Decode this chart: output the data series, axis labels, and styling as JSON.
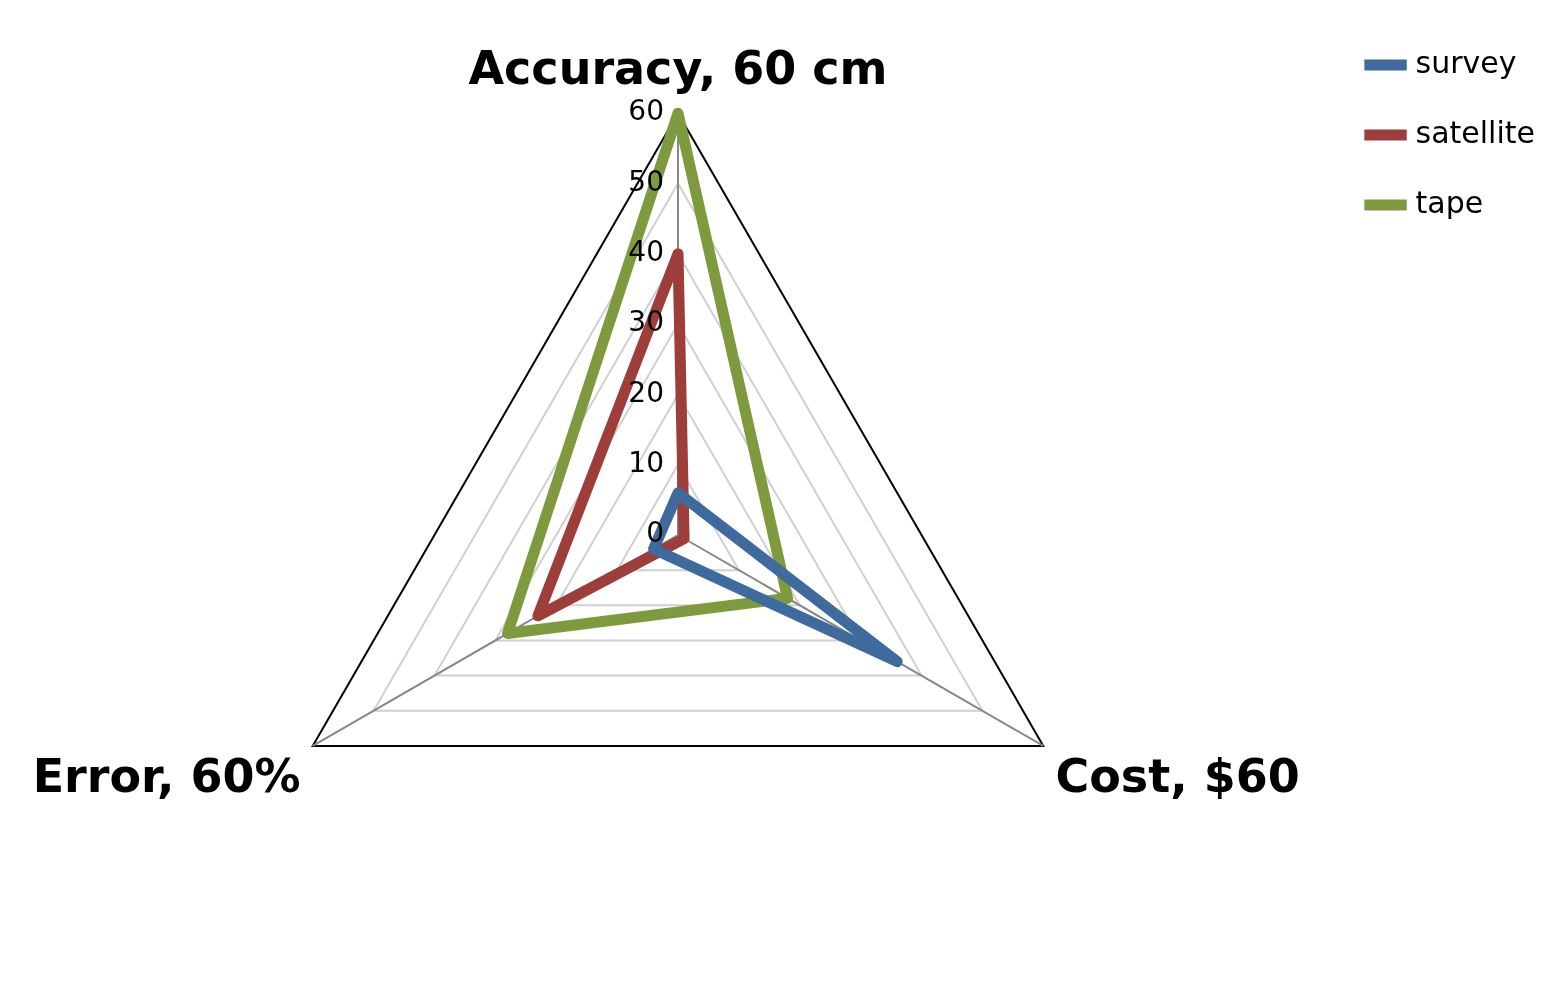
{
  "chart_data": {
    "type": "radar",
    "categories": [
      "Accuracy, 60 cm",
      "Cost, $60",
      "Error, 60%"
    ],
    "series": [
      {
        "name": "survey",
        "color": "#3e6a9e",
        "values": [
          6,
          36,
          4
        ]
      },
      {
        "name": "satellite",
        "color": "#9e3e3b",
        "values": [
          40,
          1,
          23
        ]
      },
      {
        "name": "tape",
        "color": "#7e9a3e",
        "values": [
          60,
          18,
          28
        ]
      }
    ],
    "ylim": [
      0,
      60
    ],
    "yticks": [
      0,
      10,
      20,
      30,
      40,
      50,
      60
    ],
    "grid": true,
    "legend": "top right",
    "marker": "none"
  }
}
